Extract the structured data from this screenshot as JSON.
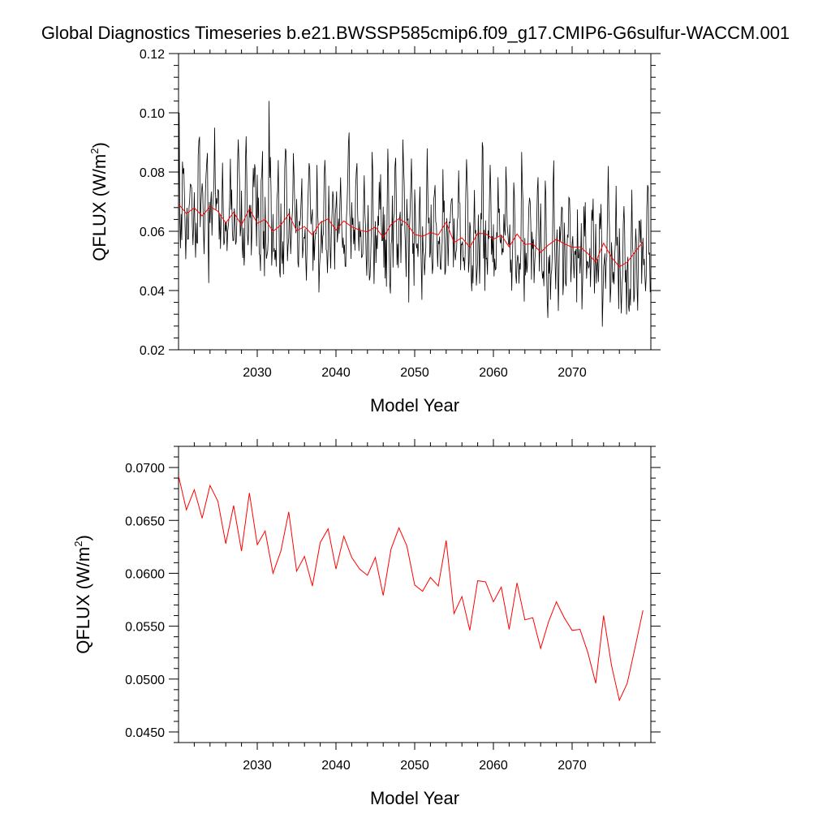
{
  "figure": {
    "title": "Global Diagnostics Timeseries b.e21.BWSSP585cmip6.f09_g17.CMIP6-G6sulfur-WACCM.001"
  },
  "colors": {
    "monthly": "#000000",
    "annual": "#ff0000",
    "axis": "#000000"
  },
  "chart_data": [
    {
      "type": "line",
      "panel": "top",
      "xlabel": "Model Year",
      "ylabel": "QFLUX (W/m",
      "ylabel_sup": "2",
      "ylabel_close": ")",
      "xlim": [
        2020,
        2080
      ],
      "ylim": [
        0.02,
        0.12
      ],
      "xticks": [
        2030,
        2040,
        2050,
        2060,
        2070
      ],
      "xtick_labels": [
        "2030",
        "2040",
        "2050",
        "2060",
        "2070"
      ],
      "yticks": [
        0.02,
        0.04,
        0.06,
        0.08,
        0.1,
        0.12
      ],
      "ytick_labels": [
        "0.02",
        "0.04",
        "0.06",
        "0.08",
        "0.10",
        "0.12"
      ],
      "grid": false,
      "series": [
        {
          "key": "monthly",
          "color": "#000000",
          "resolution": "monthly",
          "x_start": 2020.0,
          "x_step": 0.083333,
          "monthly_climatology": [
            0.064,
            0.061,
            0.058,
            0.052,
            0.056,
            0.06,
            0.072,
            0.081,
            0.079,
            0.064,
            0.056,
            0.055
          ],
          "noise_seed": 7,
          "peaks": [
            [
              2020.1,
              0.1
            ],
            [
              2024.6,
              0.095
            ],
            [
              2031.5,
              0.104
            ],
            [
              2048.5,
              0.091
            ],
            [
              2070.6,
              0.036
            ]
          ]
        },
        {
          "key": "annual",
          "color": "#ff0000",
          "resolution": "annual",
          "x": [
            2020,
            2021,
            2022,
            2023,
            2024,
            2025,
            2026,
            2027,
            2028,
            2029,
            2030,
            2031,
            2032,
            2033,
            2034,
            2035,
            2036,
            2037,
            2038,
            2039,
            2040,
            2041,
            2042,
            2043,
            2044,
            2045,
            2046,
            2047,
            2048,
            2049,
            2050,
            2051,
            2052,
            2053,
            2054,
            2055,
            2056,
            2057,
            2058,
            2059,
            2060,
            2061,
            2062,
            2063,
            2064,
            2065,
            2066,
            2067,
            2068,
            2069,
            2070,
            2071,
            2072,
            2073,
            2074,
            2075,
            2076,
            2077,
            2078,
            2079
          ],
          "values": [
            0.0692,
            0.066,
            0.0679,
            0.0652,
            0.0683,
            0.0668,
            0.0628,
            0.0664,
            0.0621,
            0.0676,
            0.0627,
            0.064,
            0.06,
            0.0621,
            0.0658,
            0.0602,
            0.0616,
            0.0588,
            0.0629,
            0.0642,
            0.0604,
            0.0635,
            0.0615,
            0.0604,
            0.0598,
            0.0615,
            0.0579,
            0.0623,
            0.0643,
            0.0626,
            0.0589,
            0.0583,
            0.0596,
            0.0588,
            0.0631,
            0.0562,
            0.0578,
            0.0546,
            0.0593,
            0.0592,
            0.0573,
            0.0587,
            0.0547,
            0.0591,
            0.0556,
            0.0558,
            0.0529,
            0.0554,
            0.0573,
            0.0558,
            0.0546,
            0.0547,
            0.0525,
            0.0496,
            0.056,
            0.0513,
            0.048,
            0.0496,
            0.053,
            0.0565
          ]
        }
      ]
    },
    {
      "type": "line",
      "panel": "bottom",
      "xlabel": "Model Year",
      "ylabel": "QFLUX (W/m",
      "ylabel_sup": "2",
      "ylabel_close": ")",
      "xlim": [
        2020,
        2080
      ],
      "ylim": [
        0.044,
        0.072
      ],
      "xticks": [
        2030,
        2040,
        2050,
        2060,
        2070
      ],
      "xtick_labels": [
        "2030",
        "2040",
        "2050",
        "2060",
        "2070"
      ],
      "yticks": [
        0.045,
        0.05,
        0.055,
        0.06,
        0.065,
        0.07
      ],
      "ytick_labels": [
        "0.0450",
        "0.0500",
        "0.0550",
        "0.0600",
        "0.0650",
        "0.0700"
      ],
      "grid": false,
      "series": [
        {
          "key": "annual",
          "color": "#ff0000",
          "x": [
            2020,
            2021,
            2022,
            2023,
            2024,
            2025,
            2026,
            2027,
            2028,
            2029,
            2030,
            2031,
            2032,
            2033,
            2034,
            2035,
            2036,
            2037,
            2038,
            2039,
            2040,
            2041,
            2042,
            2043,
            2044,
            2045,
            2046,
            2047,
            2048,
            2049,
            2050,
            2051,
            2052,
            2053,
            2054,
            2055,
            2056,
            2057,
            2058,
            2059,
            2060,
            2061,
            2062,
            2063,
            2064,
            2065,
            2066,
            2067,
            2068,
            2069,
            2070,
            2071,
            2072,
            2073,
            2074,
            2075,
            2076,
            2077,
            2078,
            2079
          ],
          "values": [
            0.0692,
            0.066,
            0.0679,
            0.0652,
            0.0683,
            0.0668,
            0.0628,
            0.0664,
            0.0621,
            0.0676,
            0.0627,
            0.064,
            0.06,
            0.0621,
            0.0658,
            0.0602,
            0.0616,
            0.0588,
            0.0629,
            0.0642,
            0.0604,
            0.0635,
            0.0615,
            0.0604,
            0.0598,
            0.0615,
            0.0579,
            0.0623,
            0.0643,
            0.0626,
            0.0589,
            0.0583,
            0.0596,
            0.0588,
            0.0631,
            0.0562,
            0.0578,
            0.0546,
            0.0593,
            0.0592,
            0.0573,
            0.0587,
            0.0547,
            0.0591,
            0.0556,
            0.0558,
            0.0529,
            0.0554,
            0.0573,
            0.0558,
            0.0546,
            0.0547,
            0.0525,
            0.0496,
            0.056,
            0.0513,
            0.048,
            0.0496,
            0.053,
            0.0565
          ]
        }
      ]
    }
  ]
}
